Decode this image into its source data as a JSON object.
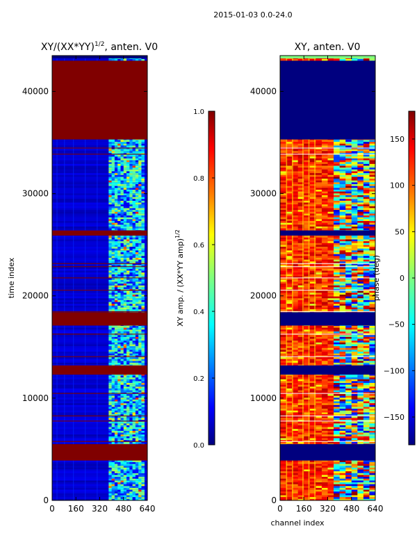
{
  "figure_title": "2015-01-03 0.0-24.0",
  "colors": {
    "jet": [
      "#00007f",
      "#0000ff",
      "#007fff",
      "#00ffff",
      "#7fff7f",
      "#ffff00",
      "#ff7f00",
      "#ff0000",
      "#7f0000"
    ],
    "flag_red": "#800000",
    "flag_navy": "#00007f",
    "frame": "#000000",
    "background": "#ffffff"
  },
  "chart_data": [
    {
      "type": "heatmap",
      "title": "XY/(XX*YY)",
      "title_sup": "1/2",
      "title_suffix": ", anten. V0",
      "xlabel": "",
      "ylabel": "time index",
      "xlim": [
        0,
        640
      ],
      "ylim": [
        0,
        43500
      ],
      "xticks": [
        0,
        160,
        320,
        480,
        640
      ],
      "yticks": [
        0,
        10000,
        20000,
        30000,
        40000
      ],
      "colorbar": {
        "label": "XY amp. / (XX*YY amp)",
        "label_sup": "1/2",
        "range": [
          0.0,
          1.0
        ],
        "ticks": [
          "0.0",
          "0.2",
          "0.4",
          "0.6",
          "0.8",
          "1.0"
        ],
        "tick_values": [
          0.0,
          0.2,
          0.4,
          0.6,
          0.8,
          1.0
        ]
      },
      "background_value": 0.08,
      "flagged_bands": [
        [
          3900,
          5500
        ],
        [
          12300,
          13200
        ],
        [
          17100,
          18400
        ],
        [
          25900,
          26400
        ],
        [
          35300,
          43000
        ]
      ],
      "flag_lines": [
        5800,
        7800,
        8300,
        10500,
        14100,
        16300,
        18500,
        20600,
        21800,
        22900,
        23200,
        33900,
        34500
      ],
      "active_channel_range": [
        380,
        620
      ],
      "top_edge_value": 0.0
    },
    {
      "type": "heatmap",
      "title": "XY, anten. V0",
      "xlabel": "channel index",
      "ylabel": "",
      "xlim": [
        0,
        640
      ],
      "ylim": [
        0,
        43500
      ],
      "xticks": [
        0,
        160,
        320,
        480,
        640
      ],
      "yticks": [
        0,
        10000,
        20000,
        30000,
        40000
      ],
      "colorbar": {
        "label": "phase (deg)",
        "range": [
          -180,
          180
        ],
        "ticks": [
          "−150",
          "−100",
          "−50",
          "0",
          "50",
          "100",
          "150"
        ],
        "tick_values": [
          -150,
          -100,
          -50,
          0,
          50,
          100,
          150
        ]
      },
      "dominant_value": 120,
      "flagged_bands": [
        [
          3900,
          5500
        ],
        [
          12300,
          13200
        ],
        [
          17100,
          18400
        ],
        [
          25900,
          26400
        ],
        [
          35300,
          43000
        ]
      ],
      "flag_lines": [
        5800,
        7800,
        8300,
        10500,
        14100,
        16300,
        18500,
        20600,
        21800,
        22900,
        23200,
        33900,
        34500
      ],
      "active_channel_range": [
        380,
        620
      ],
      "top_edge_value": 0
    }
  ]
}
